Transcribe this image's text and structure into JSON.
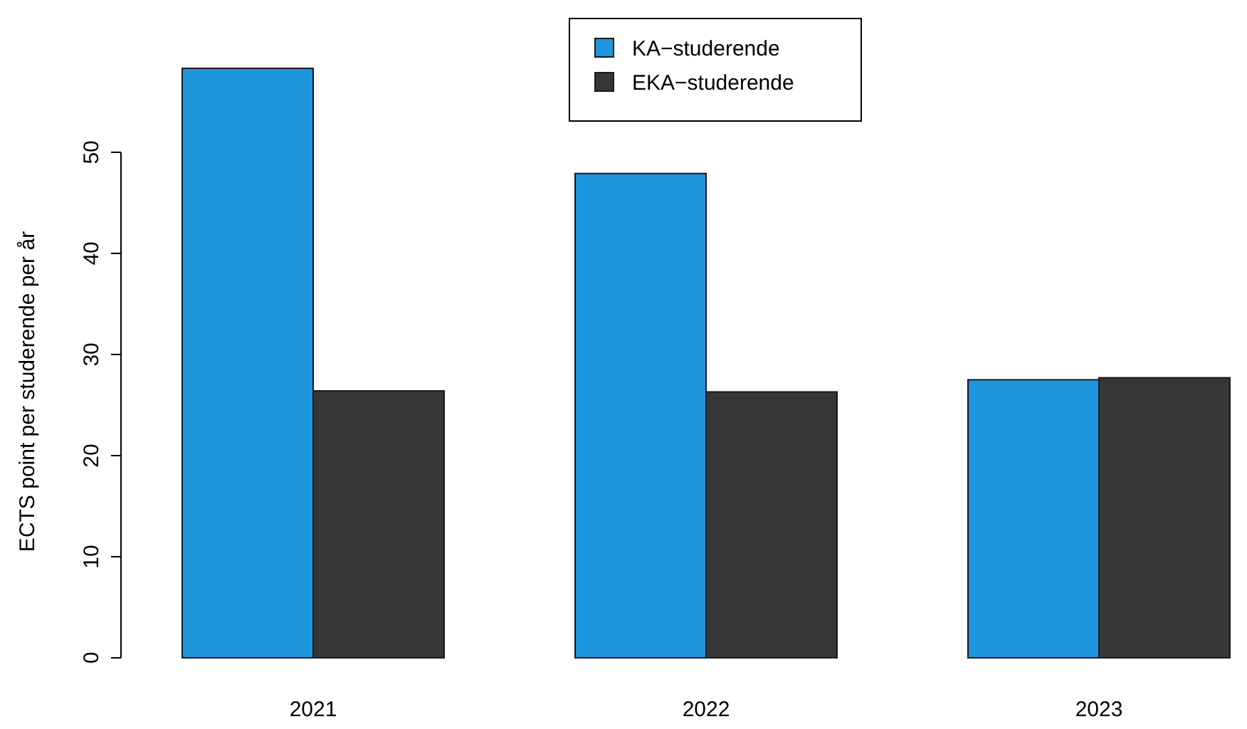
{
  "chart_data": {
    "type": "bar",
    "ylabel": "ECTS point per studerende per år",
    "categories": [
      "2021",
      "2022",
      "2023"
    ],
    "series": [
      {
        "name": "KA−studerende",
        "color": "#1e96de",
        "values": [
          58.3,
          47.9,
          27.5
        ]
      },
      {
        "name": "EKA−studerende",
        "color": "#363638",
        "values": [
          26.4,
          26.3,
          27.7
        ]
      }
    ],
    "ylim": [
      0,
      58.3
    ],
    "yticks": [
      0,
      10,
      20,
      30,
      40,
      50
    ],
    "legend": "top",
    "grid": false
  }
}
